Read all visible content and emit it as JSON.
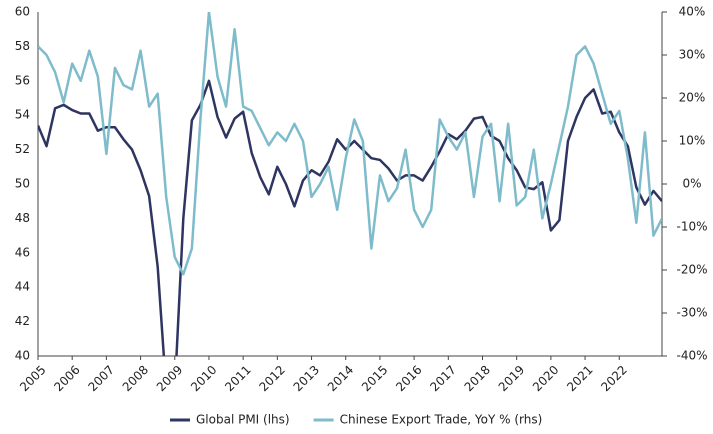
{
  "chart_data": {
    "type": "line",
    "x": [
      2005,
      2005.25,
      2005.5,
      2005.75,
      2006,
      2006.25,
      2006.5,
      2006.75,
      2007,
      2007.25,
      2007.5,
      2007.75,
      2008,
      2008.25,
      2008.5,
      2008.75,
      2009,
      2009.25,
      2009.5,
      2009.75,
      2010,
      2010.25,
      2010.5,
      2010.75,
      2011,
      2011.25,
      2011.5,
      2011.75,
      2012,
      2012.25,
      2012.5,
      2012.75,
      2013,
      2013.25,
      2013.5,
      2013.75,
      2014,
      2014.25,
      2014.5,
      2014.75,
      2015,
      2015.25,
      2015.5,
      2015.75,
      2016,
      2016.25,
      2016.5,
      2016.75,
      2017,
      2017.25,
      2017.5,
      2017.75,
      2018,
      2018.25,
      2018.5,
      2018.75,
      2019,
      2019.25,
      2019.5,
      2019.75,
      2020,
      2020.25,
      2020.5,
      2020.75,
      2021,
      2021.25,
      2021.5,
      2021.75,
      2022,
      2022.25,
      2022.5,
      2022.75,
      2023,
      2023.25
    ],
    "series": [
      {
        "name": "Global PMI (lhs)",
        "color": "#2e3560",
        "values": [
          53.4,
          52.2,
          54.4,
          54.6,
          54.3,
          54.1,
          54.1,
          53.1,
          53.3,
          53.3,
          52.6,
          52.0,
          50.8,
          49.3,
          45.2,
          38,
          38,
          48,
          53.7,
          54.6,
          56,
          53.9,
          52.7,
          53.8,
          54.2,
          51.8,
          50.4,
          49.4,
          51,
          50,
          48.7,
          50.2,
          50.8,
          50.5,
          51.3,
          52.6,
          52,
          52.5,
          52,
          51.5,
          51.4,
          50.9,
          50.2,
          50.5,
          50.5,
          50.2,
          51,
          51.9,
          52.9,
          52.6,
          53.1,
          53.8,
          53.9,
          52.8,
          52.5,
          51.5,
          50.8,
          49.8,
          49.7,
          50.1,
          47.3,
          47.9,
          52.5,
          53.9,
          55,
          55.5,
          54.1,
          54.2,
          53,
          52.2,
          49.8,
          48.8,
          49.6,
          49.0
        ]
      },
      {
        "name": "Chinese Export Trade, YoY % (rhs)",
        "color": "#7fbccb",
        "axis": "y2",
        "values": [
          32,
          30,
          26,
          19,
          28,
          24,
          31,
          25,
          7,
          27,
          23,
          22,
          31,
          18,
          21,
          -3,
          -17,
          -21,
          -15,
          15,
          40,
          25,
          18,
          36,
          18,
          17,
          13,
          9,
          12,
          10,
          14,
          10,
          -3,
          0,
          4,
          -6,
          6,
          15,
          10,
          -15,
          2,
          -4,
          -1,
          8,
          -6,
          -10,
          -6,
          15,
          11,
          8,
          12,
          -3,
          11,
          14,
          -4,
          14,
          -5,
          -3,
          8,
          -8,
          0,
          9,
          18,
          30,
          32,
          28,
          21,
          14,
          17,
          6,
          -9,
          12,
          -12,
          -8
        ]
      }
    ],
    "xlim": [
      2005,
      2023.25
    ],
    "xticks": [
      2005,
      2006,
      2007,
      2008,
      2009,
      2010,
      2011,
      2012,
      2013,
      2014,
      2015,
      2016,
      2017,
      2018,
      2019,
      2020,
      2021,
      2022
    ],
    "ylim": [
      40,
      60
    ],
    "yticks": [
      40,
      42,
      44,
      46,
      48,
      50,
      52,
      54,
      56,
      58,
      60
    ],
    "y2lim": [
      -40,
      40
    ],
    "y2ticks": [
      {
        "value": -40,
        "label": "-40%"
      },
      {
        "value": -30,
        "label": "-30%"
      },
      {
        "value": -20,
        "label": "-20%"
      },
      {
        "value": -10,
        "label": "-10%"
      },
      {
        "value": 0,
        "label": "0%"
      },
      {
        "value": 10,
        "label": "10%"
      },
      {
        "value": 20,
        "label": "20%"
      },
      {
        "value": 30,
        "label": "30%"
      },
      {
        "value": 40,
        "label": "40%"
      }
    ],
    "legend": "bottom"
  }
}
